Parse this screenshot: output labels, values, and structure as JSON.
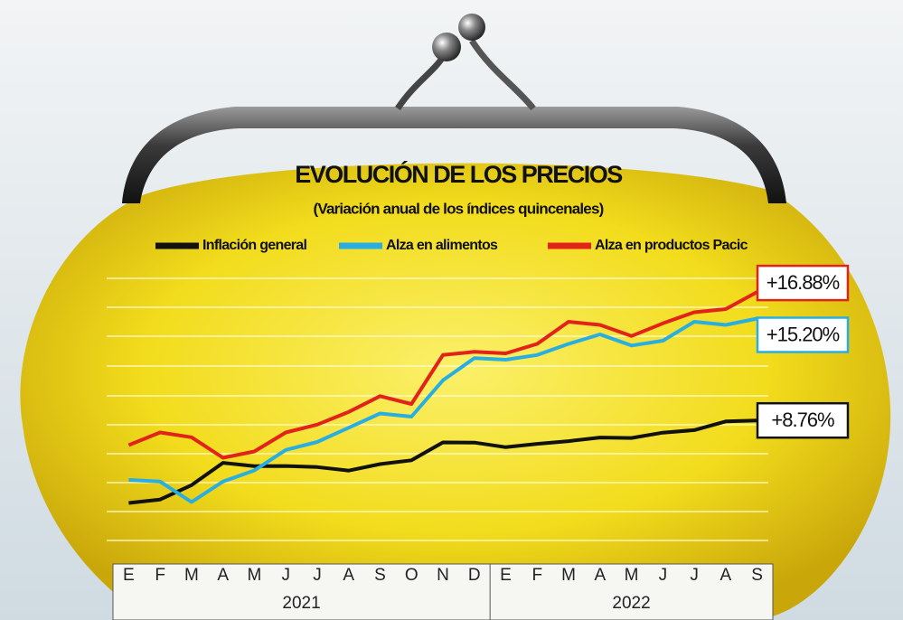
{
  "chart_data": {
    "type": "line",
    "title": "EVOLUCIÓN DE LOS PRECIOS",
    "subtitle": "(Variación anual de los índices quincenales)",
    "categories": [
      "E",
      "F",
      "M",
      "A",
      "M",
      "J",
      "J",
      "A",
      "S",
      "O",
      "N",
      "D",
      "E",
      "F",
      "M",
      "A",
      "M",
      "J",
      "J",
      "A",
      "S"
    ],
    "years": [
      "2021",
      "2022"
    ],
    "ylim": [
      1,
      19
    ],
    "grid": true,
    "series": [
      {
        "name": "Inflación general",
        "color": "#111111",
        "values": [
          3.54,
          3.76,
          4.67,
          6.08,
          5.87,
          5.88,
          5.81,
          5.59,
          6.0,
          6.24,
          7.37,
          7.36,
          7.07,
          7.28,
          7.45,
          7.68,
          7.65,
          7.99,
          8.15,
          8.7,
          8.76
        ],
        "value_labels": [
          null,
          null,
          null,
          null,
          null,
          null,
          null,
          null,
          null,
          null,
          null,
          null,
          null,
          null,
          null,
          null,
          null,
          null,
          null,
          null,
          "+8.76%"
        ]
      },
      {
        "name": "Alza en alimentos",
        "color": "#29aee3",
        "values": [
          5.0,
          4.9,
          3.6,
          4.9,
          5.6,
          6.9,
          7.4,
          8.3,
          9.2,
          9.0,
          11.3,
          12.7,
          12.6,
          12.9,
          13.6,
          14.2,
          13.5,
          13.8,
          15.0,
          14.8,
          15.2
        ],
        "value_labels": [
          null,
          null,
          null,
          null,
          null,
          null,
          null,
          null,
          null,
          null,
          null,
          null,
          null,
          null,
          null,
          null,
          null,
          null,
          null,
          null,
          "+15.20%"
        ]
      },
      {
        "name": "Alza en productos Pacic",
        "color": "#e2231a",
        "values": [
          7.2,
          8.0,
          7.7,
          6.4,
          6.8,
          8.0,
          8.5,
          9.3,
          10.3,
          9.8,
          12.9,
          13.1,
          13.0,
          13.6,
          15.0,
          14.8,
          14.1,
          14.9,
          15.6,
          15.8,
          16.88
        ],
        "value_labels": [
          null,
          null,
          null,
          null,
          null,
          null,
          null,
          null,
          null,
          null,
          null,
          null,
          null,
          null,
          null,
          null,
          null,
          null,
          null,
          null,
          "+16.88%"
        ]
      }
    ]
  }
}
